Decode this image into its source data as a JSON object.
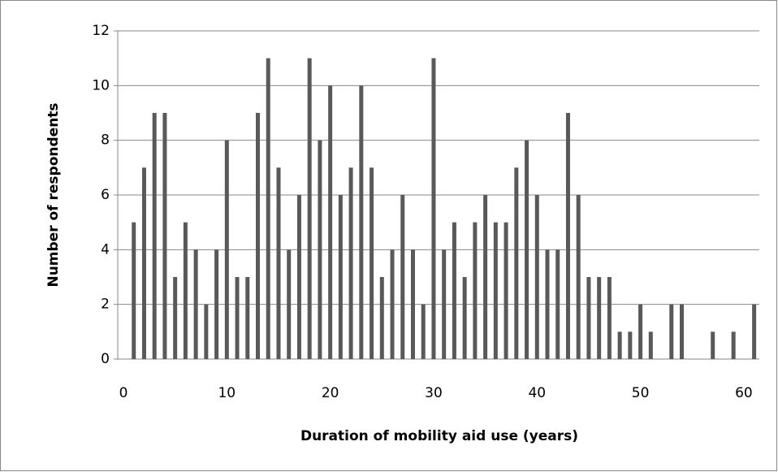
{
  "chart_data": {
    "type": "bar",
    "x_label": "Duration of mobility aid use (years)",
    "y_label": "Number of respondents",
    "x": [
      1,
      2,
      3,
      4,
      5,
      6,
      7,
      8,
      9,
      10,
      11,
      12,
      13,
      14,
      15,
      16,
      17,
      18,
      19,
      20,
      21,
      22,
      23,
      24,
      25,
      26,
      27,
      28,
      29,
      30,
      31,
      32,
      33,
      34,
      35,
      36,
      37,
      38,
      39,
      40,
      41,
      42,
      43,
      44,
      45,
      46,
      47,
      48,
      49,
      50,
      51,
      52,
      53,
      54,
      55,
      56,
      57,
      58,
      59,
      60,
      61
    ],
    "values": [
      5,
      7,
      9,
      9,
      3,
      5,
      4,
      2,
      4,
      8,
      3,
      3,
      9,
      11,
      7,
      4,
      6,
      11,
      8,
      10,
      6,
      7,
      10,
      7,
      3,
      4,
      6,
      4,
      2,
      11,
      4,
      5,
      3,
      5,
      6,
      5,
      5,
      7,
      8,
      6,
      4,
      4,
      9,
      6,
      3,
      3,
      3,
      1,
      1,
      2,
      1,
      0,
      2,
      2,
      0,
      0,
      1,
      0,
      1,
      0,
      2
    ],
    "color": "#595959",
    "xlim": [
      -0.55,
      61.5
    ],
    "xticks": [
      0,
      10,
      20,
      30,
      40,
      50,
      60
    ],
    "ylim": [
      0,
      12
    ],
    "yticks": [
      0,
      2,
      4,
      6,
      8,
      10,
      12
    ],
    "grid": true
  }
}
